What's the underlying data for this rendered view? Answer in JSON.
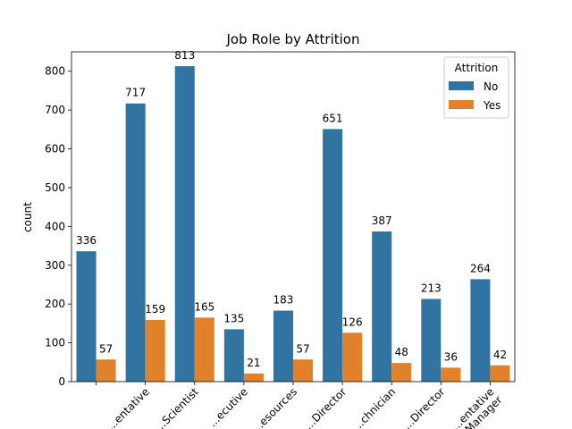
{
  "chart_data": {
    "type": "bar",
    "title": "Job Role by Attrition",
    "xlabel": "",
    "ylabel": "count",
    "ylim": [
      0,
      850
    ],
    "yticks": [
      0,
      100,
      200,
      300,
      400,
      500,
      600,
      700,
      800
    ],
    "grid": false,
    "legend": {
      "title": "Attrition",
      "placement": "top-right"
    },
    "categories": [
      "",
      "...entative",
      "...Scientist",
      "...ecutive",
      "...esources",
      "...Director",
      "...chnician",
      "...Director",
      "...entative\nManager"
    ],
    "series": [
      {
        "name": "No",
        "color": "#3274a1",
        "values": [
          336,
          717,
          813,
          135,
          183,
          651,
          387,
          213,
          264
        ]
      },
      {
        "name": "Yes",
        "color": "#e1812c",
        "values": [
          57,
          159,
          165,
          21,
          57,
          126,
          48,
          36,
          42
        ]
      }
    ]
  }
}
